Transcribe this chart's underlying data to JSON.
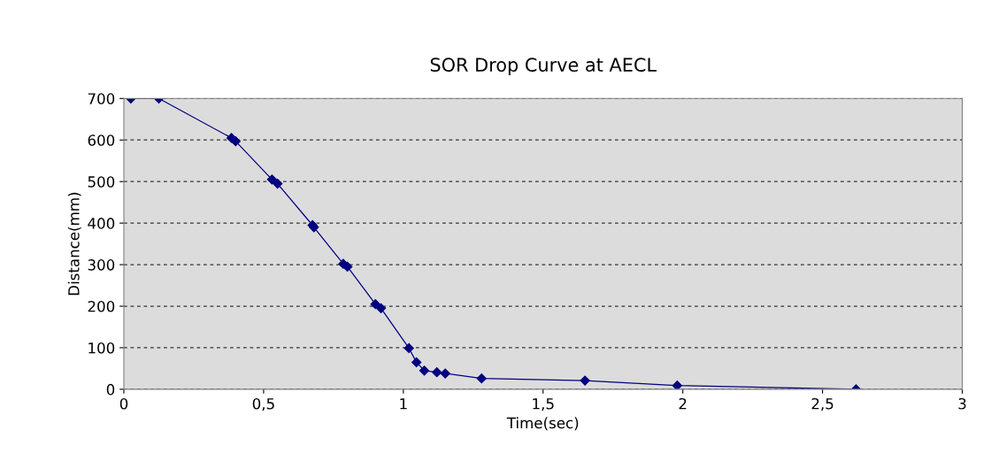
{
  "chart_data": {
    "type": "line",
    "title": "SOR Drop Curve at AECL",
    "xlabel": "Time(sec)",
    "ylabel": "Distance(mm)",
    "x": [
      0.025,
      0.125,
      0.385,
      0.4,
      0.53,
      0.55,
      0.675,
      0.68,
      0.785,
      0.8,
      0.9,
      0.92,
      1.02,
      1.047,
      1.075,
      1.12,
      1.15,
      1.28,
      1.65,
      1.98,
      2.62
    ],
    "series": [
      {
        "color": "#000080",
        "values": [
          700,
          700,
          605,
          597,
          505,
          495,
          395,
          390,
          302,
          295,
          205,
          195,
          99,
          65,
          45,
          41,
          38,
          26,
          21,
          9,
          0
        ]
      }
    ],
    "xlim": [
      0,
      3
    ],
    "xticks": [
      0,
      {
        "value": 0.5,
        "label": "0,5"
      },
      1,
      {
        "value": 1.5,
        "label": "1,5"
      },
      2,
      {
        "value": 2.5,
        "label": "2,5"
      },
      3
    ],
    "ylim": [
      0,
      700
    ],
    "yticks": [
      0,
      100,
      200,
      300,
      400,
      500,
      600,
      700
    ],
    "grid": "y",
    "marker": "diamond",
    "line_style": "solid",
    "legend": false
  }
}
